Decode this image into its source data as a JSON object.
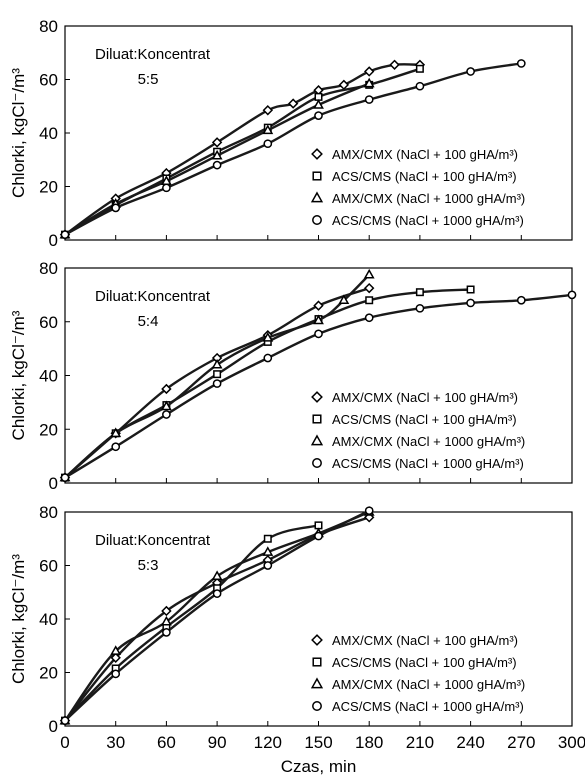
{
  "chart_data": [
    {
      "type": "line",
      "annotation_line1": "Diluat:Koncentrat",
      "annotation_line2": "5:5",
      "ylabel": "Chlorki, kgCl⁻/m³",
      "ylim": [
        0,
        80
      ],
      "yticks": [
        "0",
        "20",
        "40",
        "60",
        "80"
      ],
      "legend_position": "bottom-right",
      "series": [
        {
          "name": "AMX/CMX (NaCl + 100 gHA/m³)",
          "marker": "diamond",
          "x": [
            0,
            30,
            60,
            90,
            120,
            135,
            150,
            165,
            180,
            195,
            210
          ],
          "y": [
            2,
            15.5,
            25,
            36.5,
            48.5,
            51,
            56,
            58,
            63,
            65.5,
            65.5
          ]
        },
        {
          "name": "ACS/CMS (NaCl + 100 gHA/m³)",
          "marker": "square",
          "x": [
            0,
            30,
            60,
            90,
            120,
            150,
            180,
            210
          ],
          "y": [
            2,
            13,
            23,
            33,
            42,
            53.5,
            58,
            64
          ]
        },
        {
          "name": "AMX/CMX (NaCl + 1000 gHA/m³)",
          "marker": "triangle",
          "x": [
            0,
            30,
            60,
            90,
            120,
            150,
            180
          ],
          "y": [
            2,
            13.5,
            22,
            31.5,
            41,
            50.5,
            58.5
          ]
        },
        {
          "name": "ACS/CMS (NaCl + 1000 gHA/m³)",
          "marker": "circle",
          "x": [
            0,
            30,
            60,
            90,
            120,
            150,
            180,
            210,
            240,
            270
          ],
          "y": [
            2,
            12,
            19.5,
            28,
            36,
            46.5,
            52.5,
            57.5,
            63,
            66
          ]
        }
      ]
    },
    {
      "type": "line",
      "annotation_line1": "Diluat:Koncentrat",
      "annotation_line2": "5:4",
      "ylabel": "Chlorki, kgCl⁻/m³",
      "ylim": [
        0,
        80
      ],
      "yticks": [
        "0",
        "20",
        "40",
        "60",
        "80"
      ],
      "legend_position": "bottom-right",
      "series": [
        {
          "name": "AMX/CMX (NaCl + 100 gHA/m³)",
          "marker": "diamond",
          "x": [
            0,
            30,
            60,
            90,
            120,
            150,
            180
          ],
          "y": [
            2,
            18.5,
            35,
            46.5,
            55,
            66,
            72.5
          ]
        },
        {
          "name": "ACS/CMS (NaCl + 100 gHA/m³)",
          "marker": "square",
          "x": [
            0,
            30,
            60,
            90,
            120,
            150,
            180,
            210,
            240
          ],
          "y": [
            2,
            18.5,
            29,
            40.5,
            52.5,
            61,
            68,
            71,
            72
          ]
        },
        {
          "name": "AMX/CMX (NaCl + 1000 gHA/m³)",
          "marker": "triangle",
          "x": [
            0,
            30,
            60,
            90,
            120,
            150,
            165,
            180
          ],
          "y": [
            2,
            18.5,
            28.5,
            44,
            54,
            60.5,
            68,
            77.5
          ]
        },
        {
          "name": "ACS/CMS (NaCl + 1000 gHA/m³)",
          "marker": "circle",
          "x": [
            0,
            30,
            60,
            90,
            120,
            150,
            180,
            210,
            240,
            270,
            300
          ],
          "y": [
            2,
            13.5,
            25.5,
            37,
            46.5,
            55.5,
            61.5,
            65,
            67,
            68,
            70
          ]
        }
      ]
    },
    {
      "type": "line",
      "annotation_line1": "Diluat:Koncentrat",
      "annotation_line2": "5:3",
      "ylabel": "Chlorki, kgCl⁻/m³",
      "xlabel": "Czas, min",
      "ylim": [
        0,
        80
      ],
      "xlim": [
        0,
        300
      ],
      "yticks": [
        "0",
        "20",
        "40",
        "60",
        "80"
      ],
      "xticks": [
        "0",
        "30",
        "60",
        "90",
        "120",
        "150",
        "180",
        "210",
        "240",
        "270",
        "300"
      ],
      "legend_position": "bottom-right",
      "series": [
        {
          "name": "AMX/CMX (NaCl + 100 gHA/m³)",
          "marker": "diamond",
          "x": [
            0,
            30,
            60,
            90,
            120,
            150,
            180
          ],
          "y": [
            2,
            25.5,
            43,
            53.5,
            62,
            71.5,
            78
          ]
        },
        {
          "name": "ACS/CMS (NaCl + 100 gHA/m³)",
          "marker": "square",
          "x": [
            0,
            30,
            60,
            90,
            120,
            150
          ],
          "y": [
            2,
            21.5,
            37,
            51.5,
            70,
            75
          ]
        },
        {
          "name": "AMX/CMX (NaCl + 1000 gHA/m³)",
          "marker": "triangle",
          "x": [
            0,
            30,
            60,
            90,
            120,
            150,
            180
          ],
          "y": [
            2,
            28,
            39,
            56,
            65,
            72,
            80
          ]
        },
        {
          "name": "ACS/CMS (NaCl + 1000 gHA/m³)",
          "marker": "circle",
          "x": [
            0,
            30,
            60,
            90,
            120,
            150,
            180
          ],
          "y": [
            2,
            19.5,
            35,
            49.5,
            60,
            71,
            80.5
          ]
        }
      ]
    }
  ]
}
